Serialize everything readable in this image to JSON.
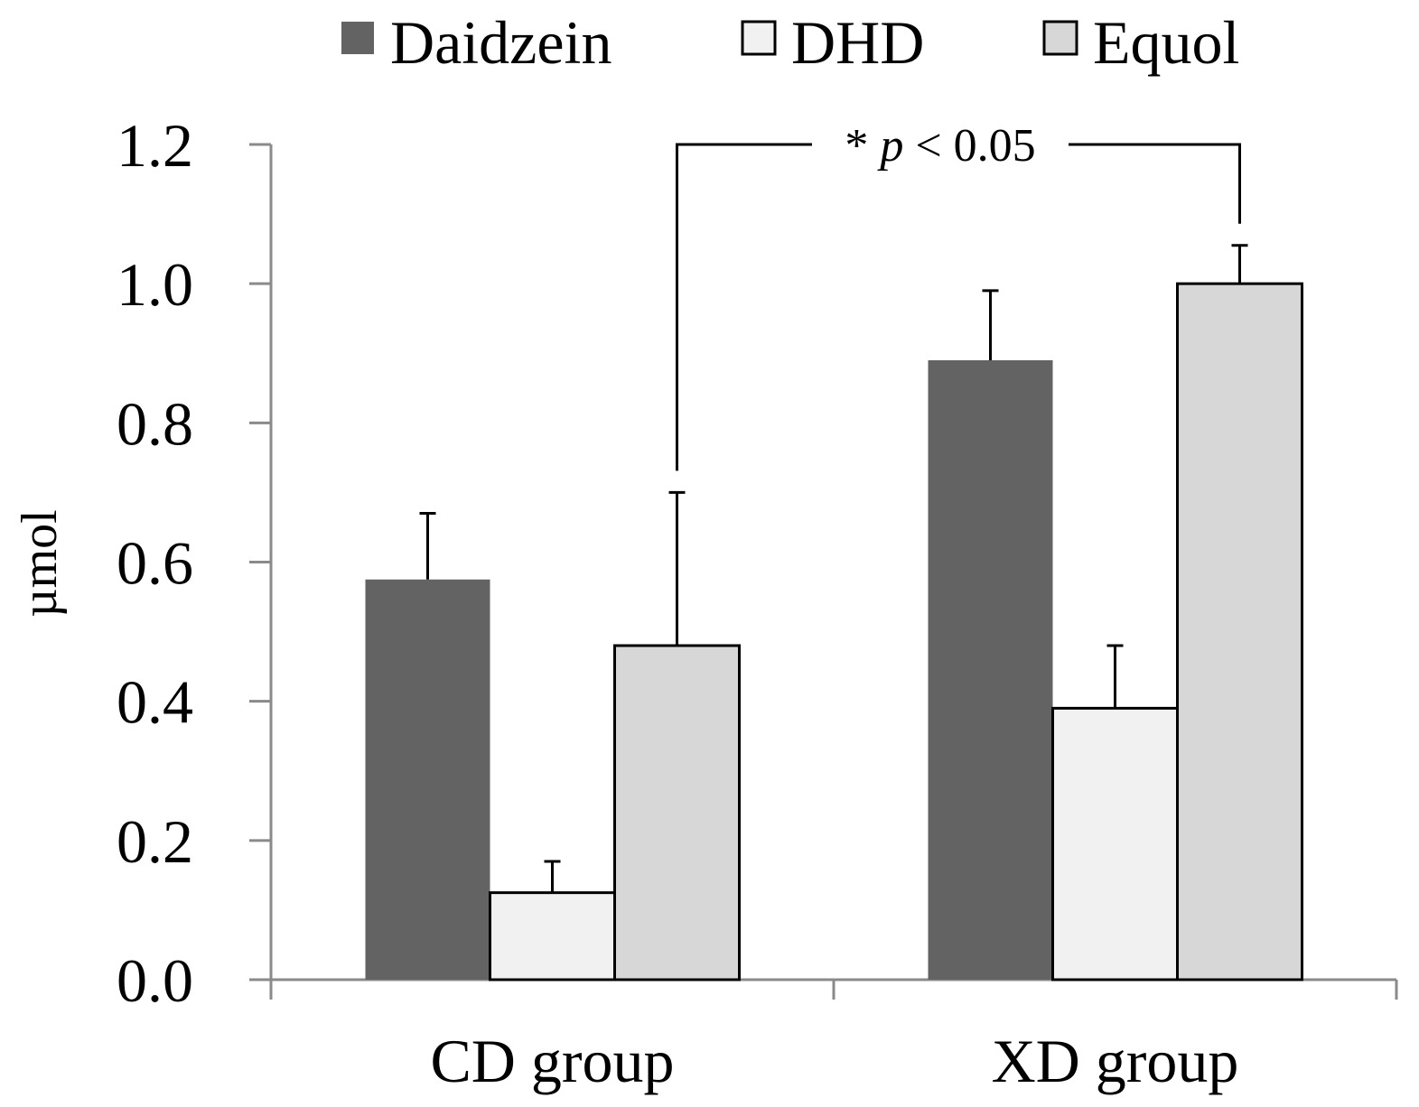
{
  "chart_data": {
    "type": "bar",
    "title": "",
    "xlabel": "",
    "ylabel": "µmol",
    "ylim": [
      0,
      1.2
    ],
    "yticks": [
      "0.0",
      "0.2",
      "0.4",
      "0.6",
      "0.8",
      "1.0",
      "1.2"
    ],
    "grid": false,
    "legend_position": "top",
    "categories": [
      "CD group",
      "XD group"
    ],
    "series": [
      {
        "name": "Daidzein",
        "color": "#636363",
        "values": [
          0.575,
          0.89
        ],
        "errors": [
          0.095,
          0.1
        ]
      },
      {
        "name": "DHD",
        "color": "#f1f1f1",
        "values": [
          0.125,
          0.39
        ],
        "errors": [
          0.045,
          0.09
        ]
      },
      {
        "name": "Equol",
        "color": "#d7d7d7",
        "values": [
          0.48,
          1.0
        ],
        "errors": [
          0.22,
          0.055
        ]
      }
    ],
    "annotation": {
      "prefix": "* ",
      "italic": "p",
      "suffix": " < 0.05",
      "compares": "Equol: CD group vs XD group"
    }
  }
}
